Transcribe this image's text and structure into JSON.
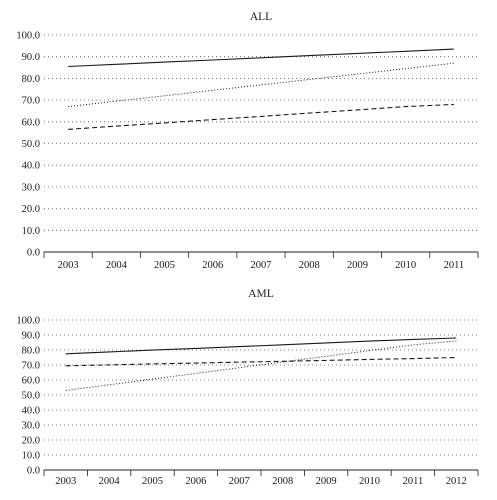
{
  "chart_data": [
    {
      "type": "line",
      "title": "ALL",
      "categories": [
        "2003",
        "2004",
        "2005",
        "2006",
        "2007",
        "2008",
        "2009",
        "2010",
        "2011"
      ],
      "y_ticks": [
        "0.0",
        "10.0",
        "20.0",
        "30.0",
        "40.0",
        "50.0",
        "60.0",
        "70.0",
        "80.0",
        "90.0",
        "100.0"
      ],
      "ylim": [
        0,
        100
      ],
      "grid": "horizontal dotted",
      "legend": "none",
      "series": [
        {
          "style": "solid",
          "values": [
            85.5,
            86.5,
            87.5,
            88.5,
            89.5,
            90.5,
            91.5,
            92.5,
            93.5
          ]
        },
        {
          "style": "dotted",
          "values": [
            67.0,
            69.5,
            72.0,
            74.5,
            77.0,
            79.5,
            82.0,
            84.5,
            87.0
          ]
        },
        {
          "style": "dashed",
          "values": [
            56.5,
            58.0,
            59.5,
            61.0,
            62.5,
            64.0,
            65.5,
            67.0,
            68.0
          ]
        }
      ]
    },
    {
      "type": "line",
      "title": "AML",
      "categories": [
        "2003",
        "2004",
        "2005",
        "2006",
        "2007",
        "2008",
        "2009",
        "2010",
        "2011",
        "2012"
      ],
      "y_ticks": [
        "0.0",
        "10.0",
        "20.0",
        "30.0",
        "40.0",
        "50.0",
        "60.0",
        "70.0",
        "80.0",
        "90.0",
        "100.0"
      ],
      "ylim": [
        0,
        100
      ],
      "grid": "horizontal dotted",
      "legend": "none",
      "series": [
        {
          "style": "solid",
          "values": [
            77.5,
            78.7,
            79.9,
            81.1,
            82.3,
            83.5,
            84.7,
            85.9,
            87.1,
            88.0
          ]
        },
        {
          "style": "dashed",
          "values": [
            69.5,
            70.1,
            70.7,
            71.3,
            71.9,
            72.5,
            73.1,
            73.7,
            74.3,
            75.0
          ]
        },
        {
          "style": "dotted",
          "values": [
            53.0,
            56.8,
            60.6,
            64.4,
            68.2,
            72.0,
            75.8,
            79.6,
            83.4,
            86.0
          ]
        }
      ]
    }
  ]
}
